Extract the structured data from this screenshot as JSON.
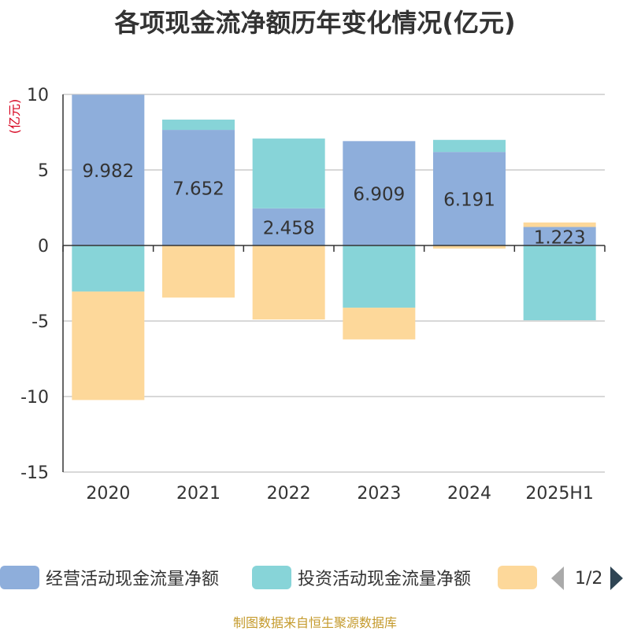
{
  "chart_data": {
    "type": "bar",
    "stacked": true,
    "title": "各项现金流净额历年变化情况(亿元)",
    "ylabel": "(亿元)",
    "ylim": [
      -15,
      10
    ],
    "yticks": [
      10,
      5,
      0,
      -5,
      -10,
      -15
    ],
    "categories": [
      "2020",
      "2021",
      "2022",
      "2023",
      "2024",
      "2025H1"
    ],
    "series": [
      {
        "name": "经营活动现金流量净额",
        "color": "#8eaedb",
        "values": [
          9.982,
          7.652,
          2.458,
          6.909,
          6.191,
          1.223
        ],
        "labels": [
          "9.982",
          "7.652",
          "2.458",
          "6.909",
          "6.191",
          "1.223"
        ]
      },
      {
        "name": "投资活动现金流量净额",
        "color": "#87d4d8",
        "values": [
          -3.05,
          0.68,
          4.62,
          -4.12,
          0.8,
          -4.95
        ]
      },
      {
        "name": "",
        "color": "#fdd89a",
        "values": [
          -7.18,
          -3.45,
          -4.9,
          -2.1,
          -0.2,
          0.3
        ]
      }
    ],
    "grid": true,
    "legend_position": "bottom"
  },
  "legend": {
    "items": [
      {
        "label": "经营活动现金流量净额",
        "color": "#8eaedb"
      },
      {
        "label": "投资活动现金流量净额",
        "color": "#87d4d8"
      },
      {
        "label": "",
        "color": "#fdd89a"
      }
    ],
    "page_text": "1/2"
  },
  "source_note": "制图数据来自恒生聚源数据库"
}
